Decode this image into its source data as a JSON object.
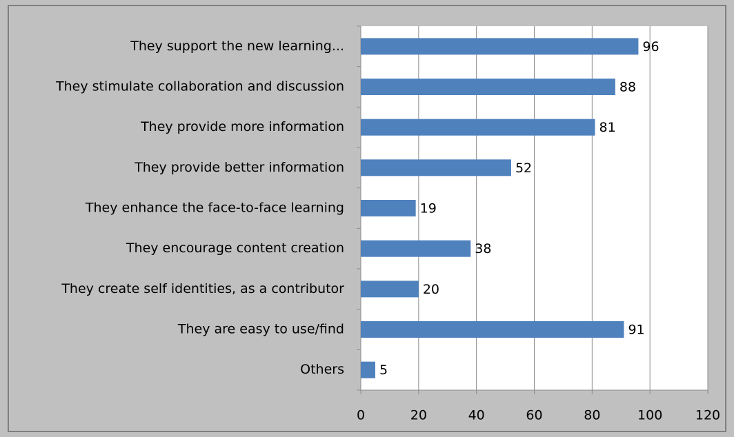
{
  "chart_data": {
    "type": "bar",
    "orientation": "horizontal",
    "categories": [
      "They support the new learning...",
      "They stimulate collaboration and discussion",
      "They provide more information",
      "They provide better information",
      "They enhance the face-to-face learning",
      "They encourage content creation",
      "They create self identities, as a contributor",
      "They are easy to use/find",
      "Others"
    ],
    "values": [
      96,
      88,
      81,
      52,
      19,
      38,
      20,
      91,
      5
    ],
    "color": "#4f81bd",
    "xlim": [
      0,
      120
    ],
    "xticks": [
      0,
      20,
      40,
      60,
      80,
      100,
      120
    ],
    "grid": true
  }
}
